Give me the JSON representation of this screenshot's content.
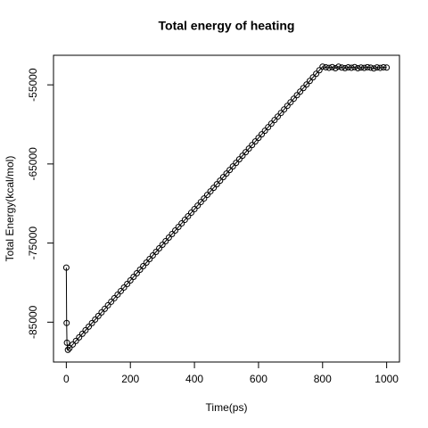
{
  "chart_data": {
    "type": "line",
    "title": "Total energy of heating",
    "x_label": "Time(ps)",
    "y_label": "Total Energy(kcal/mol)",
    "markers": "open-circle",
    "color": "#000000",
    "x": [
      0,
      1,
      2,
      5,
      10,
      20,
      30,
      40,
      50,
      60,
      70,
      80,
      90,
      100,
      110,
      120,
      130,
      140,
      150,
      160,
      170,
      180,
      190,
      200,
      210,
      220,
      230,
      240,
      250,
      260,
      270,
      280,
      290,
      300,
      310,
      320,
      330,
      340,
      350,
      360,
      370,
      380,
      390,
      400,
      410,
      420,
      430,
      440,
      450,
      460,
      470,
      480,
      490,
      500,
      510,
      520,
      530,
      540,
      550,
      560,
      570,
      580,
      590,
      600,
      610,
      620,
      630,
      640,
      650,
      660,
      670,
      680,
      690,
      700,
      710,
      720,
      730,
      740,
      750,
      760,
      770,
      780,
      790,
      800,
      810,
      820,
      830,
      840,
      850,
      860,
      870,
      880,
      890,
      900,
      910,
      920,
      930,
      940,
      950,
      960,
      970,
      980,
      990,
      1000
    ],
    "series": [
      {
        "name": "Total Energy",
        "values": [
          -78100,
          -85100,
          -87600,
          -88500,
          -88280,
          -87820,
          -87370,
          -86920,
          -86470,
          -86020,
          -85570,
          -85120,
          -84670,
          -84220,
          -83770,
          -83320,
          -82870,
          -82420,
          -81970,
          -81520,
          -81070,
          -80620,
          -80170,
          -79720,
          -79269,
          -78819,
          -78369,
          -77918,
          -77468,
          -77018,
          -76567,
          -76117,
          -75667,
          -75216,
          -74766,
          -74316,
          -73866,
          -73415,
          -72965,
          -72515,
          -72064,
          -71614,
          -71164,
          -70713,
          -70263,
          -69813,
          -69363,
          -68912,
          -68462,
          -68012,
          -67561,
          -67111,
          -66661,
          -66210,
          -65760,
          -65310,
          -64860,
          -64409,
          -63959,
          -63509,
          -63058,
          -62608,
          -62158,
          -61707,
          -61257,
          -60807,
          -60357,
          -59906,
          -59456,
          -59006,
          -58555,
          -58105,
          -57655,
          -57204,
          -56754,
          -56304,
          -55854,
          -55403,
          -54953,
          -54503,
          -54052,
          -53602,
          -53152,
          -52701,
          -52780,
          -52850,
          -52760,
          -52900,
          -52700,
          -52820,
          -52880,
          -52790,
          -52840,
          -52760,
          -52900,
          -52810,
          -52860,
          -52770,
          -52830,
          -52920,
          -52800,
          -52850,
          -52780,
          -52820
        ]
      }
    ],
    "xlim": [
      -40,
      1040
    ],
    "ylim": [
      -90036,
      -51264
    ],
    "xticks": [
      0,
      200,
      400,
      600,
      800,
      1000
    ],
    "yticks": [
      -85000,
      -75000,
      -65000,
      -55000
    ]
  }
}
